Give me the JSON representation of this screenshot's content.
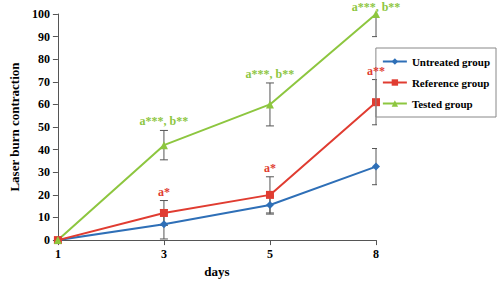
{
  "chart_data": {
    "type": "line",
    "x_label": "days",
    "y_label": "Laser burn contraction",
    "categories": [
      "1",
      "3",
      "5",
      "8"
    ],
    "ylim": [
      0,
      100
    ],
    "yticks": [
      0,
      10,
      20,
      30,
      40,
      50,
      60,
      70,
      80,
      90,
      100
    ],
    "grid": false,
    "legend": "right",
    "series": [
      {
        "name": "Untreated group",
        "color": "#2e6fb7",
        "marker": "diamond",
        "values": [
          0,
          7,
          15.5,
          32.5
        ],
        "errors": [
          0,
          6.5,
          4,
          8
        ]
      },
      {
        "name": "Reference group",
        "color": "#e03c31",
        "marker": "square",
        "values": [
          0,
          12,
          20,
          61
        ],
        "errors": [
          0,
          5.5,
          8,
          10
        ],
        "annotations": [
          null,
          "a*",
          "a*",
          "a**"
        ]
      },
      {
        "name": "Tested group",
        "color": "#8dc63f",
        "marker": "triangle",
        "values": [
          0,
          42,
          60,
          100
        ],
        "errors": [
          0,
          6.5,
          9.5,
          10
        ],
        "annotations": [
          null,
          "a***, b**",
          "a***, b**",
          "a***, b**"
        ]
      }
    ]
  }
}
